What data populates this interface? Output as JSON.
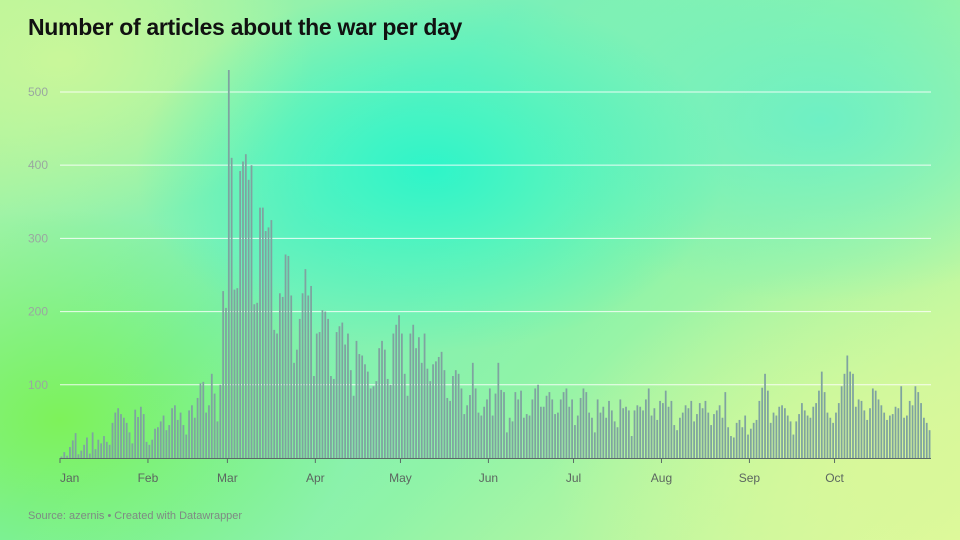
{
  "title": "Number of articles about the war per day",
  "footer": {
    "source": "Source: azernis",
    "separator": "•",
    "credit": "Created with Datawrapper"
  },
  "colors": {
    "bar": "#7fa3a0",
    "grid": "#ffffff",
    "axis": "#5b6b66"
  },
  "chart_data": {
    "type": "bar",
    "title": "Number of articles about the war per day",
    "xlabel": "",
    "ylabel": "",
    "ylim": [
      0,
      500
    ],
    "yticks": [
      100,
      200,
      300,
      400,
      500
    ],
    "grid": true,
    "x_month_labels": [
      "Jan",
      "Feb",
      "Mar",
      "Apr",
      "May",
      "Jun",
      "Jul",
      "Aug",
      "Sep",
      "Oct"
    ],
    "x_start": "Jan 1",
    "values": [
      2,
      8,
      3,
      15,
      24,
      34,
      5,
      10,
      18,
      28,
      6,
      35,
      12,
      25,
      20,
      30,
      22,
      18,
      48,
      62,
      68,
      60,
      55,
      48,
      35,
      20,
      66,
      56,
      70,
      60,
      22,
      18,
      25,
      40,
      42,
      50,
      58,
      38,
      45,
      68,
      72,
      52,
      62,
      45,
      32,
      65,
      72,
      55,
      82,
      102,
      104,
      62,
      72,
      115,
      88,
      50,
      100,
      228,
      205,
      530,
      410,
      230,
      232,
      392,
      405,
      415,
      380,
      400,
      210,
      212,
      342,
      342,
      310,
      315,
      325,
      175,
      170,
      225,
      220,
      278,
      276,
      222,
      130,
      148,
      190,
      225,
      258,
      222,
      235,
      112,
      170,
      172,
      202,
      200,
      190,
      112,
      108,
      172,
      180,
      185,
      155,
      170,
      120,
      85,
      160,
      142,
      140,
      128,
      118,
      95,
      98,
      105,
      150,
      160,
      148,
      108,
      100,
      170,
      182,
      195,
      170,
      115,
      85,
      170,
      182,
      150,
      165,
      130,
      170,
      122,
      105,
      128,
      132,
      138,
      145,
      120,
      82,
      78,
      112,
      120,
      115,
      95,
      60,
      72,
      86,
      130,
      95,
      62,
      58,
      70,
      80,
      95,
      58,
      88,
      130,
      93,
      90,
      35,
      55,
      50,
      90,
      80,
      92,
      55,
      60,
      58,
      80,
      95,
      100,
      70,
      70,
      85,
      90,
      80,
      60,
      62,
      80,
      90,
      95,
      70,
      80,
      45,
      58,
      82,
      95,
      90,
      62,
      55,
      35,
      80,
      62,
      70,
      55,
      78,
      65,
      50,
      42,
      80,
      68,
      70,
      65,
      30,
      65,
      72,
      70,
      65,
      80,
      95,
      58,
      68,
      52,
      78,
      75,
      92,
      70,
      78,
      45,
      38,
      55,
      62,
      72,
      68,
      78,
      50,
      60,
      75,
      68,
      78,
      62,
      45,
      60,
      65,
      72,
      55,
      90,
      42,
      30,
      28,
      48,
      52,
      42,
      58,
      32,
      40,
      48,
      52,
      78,
      96,
      115,
      92,
      48,
      62,
      58,
      70,
      72,
      68,
      58,
      50,
      32,
      50,
      60,
      75,
      65,
      58,
      55,
      70,
      75,
      92,
      118,
      90,
      62,
      55,
      48,
      62,
      75,
      98,
      115,
      140,
      118,
      115,
      70,
      80,
      78,
      65,
      52,
      68,
      95,
      92,
      80,
      72,
      62,
      52,
      58,
      60,
      70,
      68,
      98,
      55,
      58,
      78,
      72,
      98,
      90,
      75,
      55,
      48,
      38
    ],
    "series_name": ""
  }
}
